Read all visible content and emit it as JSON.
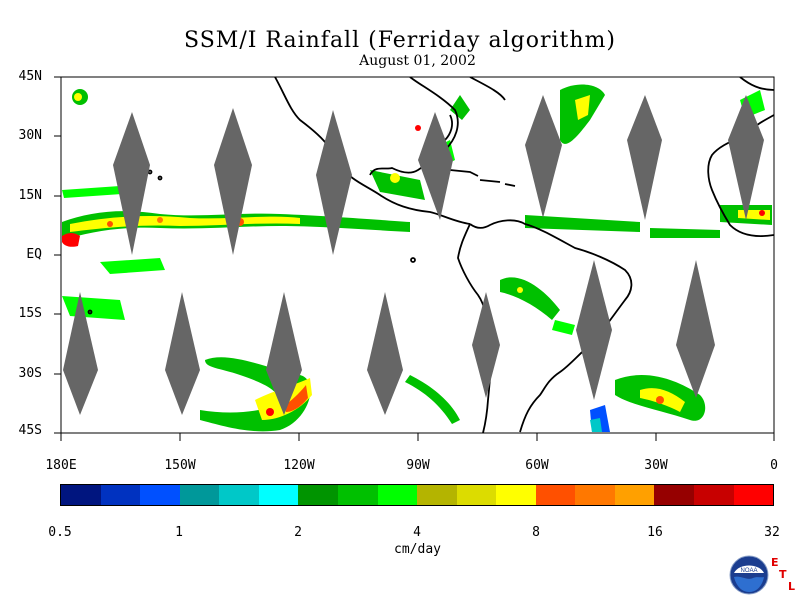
{
  "title": "SSM/I Rainfall (Ferriday algorithm)",
  "subtitle": "August 01, 2002",
  "units": "cm/day",
  "map": {
    "lon_range": [
      -180,
      0
    ],
    "lat_range": [
      -45,
      45
    ],
    "land_color": "#ffffff",
    "coast_color": "#000000",
    "swath_gap_color": "#666666"
  },
  "lat_labels": [
    "45N",
    "30N",
    "15N",
    "EQ",
    "15S",
    "30S",
    "45S"
  ],
  "lon_labels": [
    "180E",
    "150W",
    "120W",
    "90W",
    "60W",
    "30W",
    "0"
  ],
  "colorbar": {
    "colors": [
      "#00157f",
      "#0032c0",
      "#0050ff",
      "#00989a",
      "#00c8c8",
      "#00ffff",
      "#009400",
      "#00c000",
      "#00ff00",
      "#b4b400",
      "#dcdc00",
      "#ffff00",
      "#ff5000",
      "#ff7800",
      "#ffa000",
      "#960000",
      "#c80000",
      "#ff0000"
    ],
    "tick_labels": [
      "0.5",
      "1",
      "2",
      "4",
      "8",
      "16",
      "32"
    ]
  },
  "logo": {
    "name": "NOAA",
    "letters": [
      "E",
      "T",
      "L"
    ]
  }
}
